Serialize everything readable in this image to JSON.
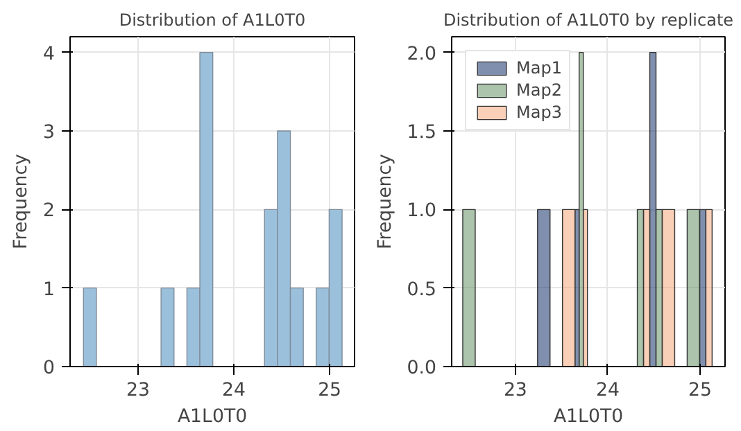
{
  "chart_data": [
    {
      "type": "histogram",
      "title": "Distribution of A1L0T0",
      "xlabel": "A1L0T0",
      "ylabel": "Frequency",
      "bins": [
        22.43,
        22.565,
        22.7,
        22.835,
        22.97,
        23.105,
        23.24,
        23.375,
        23.51,
        23.645,
        23.78,
        23.915,
        24.05,
        24.185,
        24.32,
        24.455,
        24.59,
        24.725,
        24.86,
        24.995,
        25.13
      ],
      "values": [
        1,
        0,
        0,
        0,
        0,
        0,
        1,
        0,
        1,
        4,
        0,
        0,
        0,
        0,
        2,
        3,
        1,
        0,
        1,
        2
      ],
      "color": "#9bc0dc",
      "xlim": [
        22.29,
        25.26
      ],
      "xticks": [
        23,
        24,
        25
      ],
      "ylim": [
        0,
        4.2
      ],
      "yticks": [
        0,
        1,
        2,
        3,
        4
      ],
      "grid": true
    },
    {
      "type": "histogram",
      "title": "Distribution of A1L0T0 by replicate",
      "xlabel": "A1L0T0",
      "ylabel": "Frequency",
      "bins": [
        22.43,
        22.565,
        22.7,
        22.835,
        22.97,
        23.105,
        23.24,
        23.375,
        23.51,
        23.645,
        23.78,
        23.915,
        24.05,
        24.185,
        24.32,
        24.455,
        24.59,
        24.725,
        24.86,
        24.995,
        25.13
      ],
      "series": [
        {
          "name": "Map1",
          "color": "#001f5b",
          "values": [
            0,
            0,
            0,
            0,
            0,
            0,
            1,
            0,
            0,
            1,
            0,
            0,
            0,
            0,
            0,
            2,
            0,
            0,
            0,
            1
          ]
        },
        {
          "name": "Map2",
          "color": "#5a8a5a",
          "values": [
            1,
            0,
            0,
            0,
            0,
            0,
            0,
            0,
            0,
            2,
            0,
            0,
            0,
            0,
            1,
            1,
            0,
            0,
            1,
            0
          ]
        },
        {
          "name": "Map3",
          "color": "#f4a070",
          "values": [
            0,
            0,
            0,
            0,
            0,
            0,
            0,
            0,
            1,
            1,
            0,
            0,
            0,
            0,
            1,
            0,
            1,
            0,
            0,
            1
          ]
        }
      ],
      "xlim": [
        22.31,
        25.27
      ],
      "xticks": [
        23,
        24,
        25
      ],
      "ylim": [
        0,
        2.1
      ],
      "yticks": [
        {
          "value": 0,
          "label": "0.0"
        },
        {
          "value": 0.5,
          "label": "0.5"
        },
        {
          "value": 1,
          "label": "1.0"
        },
        {
          "value": 1.5,
          "label": "1.5"
        },
        {
          "value": 2,
          "label": "2.0"
        }
      ],
      "grid": true,
      "legend": "top left"
    }
  ]
}
